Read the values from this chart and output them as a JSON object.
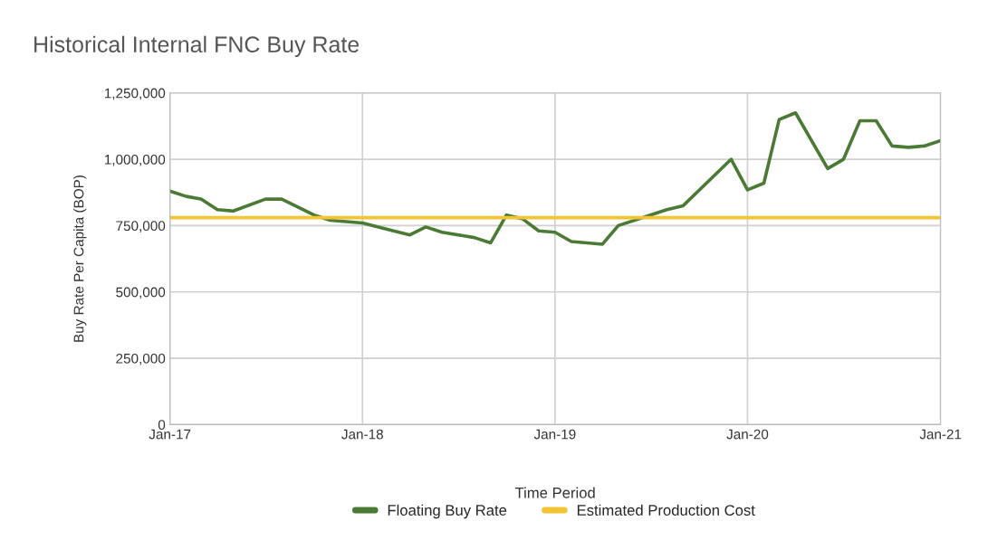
{
  "chart_data": {
    "type": "line",
    "title": "Historical Internal FNC Buy Rate",
    "xlabel": "Time Period",
    "ylabel": "Buy Rate Per Capita (BOP)",
    "series": [
      {
        "name": "Floating Buy Rate",
        "color": "#4b7a35",
        "x": [
          "2017-01",
          "2017-02",
          "2017-03",
          "2017-04",
          "2017-05",
          "2017-07",
          "2017-08",
          "2017-10",
          "2017-11",
          "2018-01",
          "2018-03",
          "2018-04",
          "2018-05",
          "2018-06",
          "2018-08",
          "2018-09",
          "2018-10",
          "2018-11",
          "2018-12",
          "2019-01",
          "2019-02",
          "2019-04",
          "2019-05",
          "2019-07",
          "2019-08",
          "2019-09",
          "2019-12",
          "2020-01",
          "2020-02",
          "2020-03",
          "2020-04",
          "2020-06",
          "2020-07",
          "2020-08",
          "2020-09",
          "2020-10",
          "2020-11",
          "2020-12",
          "2021-01"
        ],
        "values": [
          880000,
          860000,
          850000,
          810000,
          805000,
          850000,
          850000,
          790000,
          770000,
          760000,
          730000,
          715000,
          745000,
          725000,
          705000,
          685000,
          790000,
          775000,
          730000,
          725000,
          690000,
          680000,
          750000,
          790000,
          810000,
          825000,
          1000000,
          885000,
          910000,
          1150000,
          1175000,
          965000,
          1000000,
          1145000,
          1145000,
          1050000,
          1045000,
          1050000,
          1070000
        ]
      },
      {
        "name": "Estimated Production Cost",
        "color": "#f2c431",
        "x": [
          "2017-01",
          "2021-01"
        ],
        "values": [
          780000,
          780000
        ]
      }
    ],
    "xlim": [
      "2017-01",
      "2021-01"
    ],
    "xticks": [
      {
        "value": "2017-01",
        "label": "Jan-17"
      },
      {
        "value": "2018-01",
        "label": "Jan-18"
      },
      {
        "value": "2019-01",
        "label": "Jan-19"
      },
      {
        "value": "2020-01",
        "label": "Jan-20"
      },
      {
        "value": "2021-01",
        "label": "Jan-21"
      }
    ],
    "ylim": [
      0,
      1250000
    ],
    "yticks": [
      0,
      {
        "value": 250000,
        "label": "250,000"
      },
      {
        "value": 500000,
        "label": "500,000"
      },
      {
        "value": 750000,
        "label": "750,000"
      },
      {
        "value": 1000000,
        "label": "1,000,000"
      },
      {
        "value": 1250000,
        "label": "1,250,000"
      }
    ],
    "grid": true,
    "legend": "bottom",
    "marker": "none",
    "line_style": "solid"
  }
}
